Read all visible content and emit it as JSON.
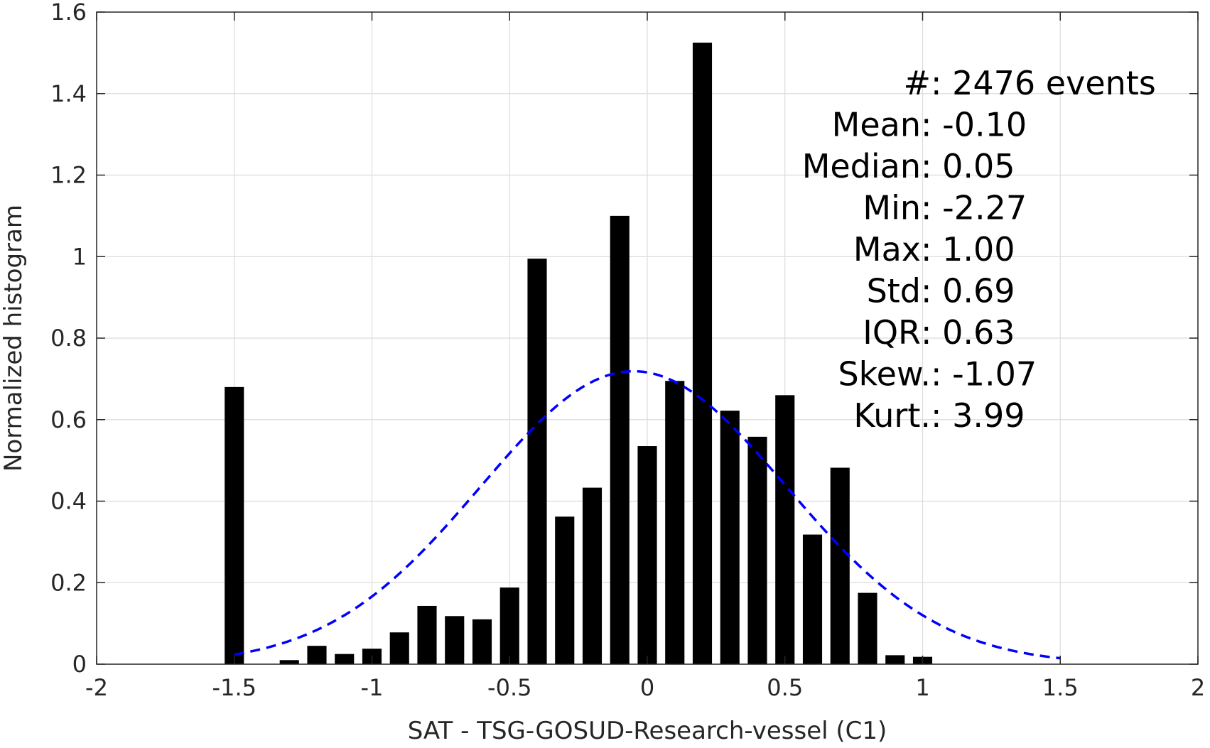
{
  "chart_data": {
    "type": "bar",
    "xlabel": "SAT - TSG-GOSUD-Research-vessel (C1)",
    "ylabel": "Normalized histogram",
    "xlim": [
      -2,
      2
    ],
    "ylim": [
      0,
      1.6
    ],
    "grid": true,
    "x_ticks": [
      "-2",
      "-1.5",
      "-1",
      "-0.5",
      "0",
      "0.5",
      "1",
      "1.5",
      "2"
    ],
    "y_ticks": [
      "0",
      "0.2",
      "0.4",
      "0.6",
      "0.8",
      "1",
      "1.2",
      "1.4",
      "1.6"
    ],
    "bar_width": 0.07,
    "bars": [
      {
        "x": -1.5,
        "y": 0.68
      },
      {
        "x": -1.3,
        "y": 0.01
      },
      {
        "x": -1.2,
        "y": 0.045
      },
      {
        "x": -1.1,
        "y": 0.025
      },
      {
        "x": -1.0,
        "y": 0.038
      },
      {
        "x": -0.9,
        "y": 0.078
      },
      {
        "x": -0.8,
        "y": 0.143
      },
      {
        "x": -0.7,
        "y": 0.118
      },
      {
        "x": -0.6,
        "y": 0.11
      },
      {
        "x": -0.5,
        "y": 0.188
      },
      {
        "x": -0.4,
        "y": 0.995
      },
      {
        "x": -0.3,
        "y": 0.362
      },
      {
        "x": -0.2,
        "y": 0.433
      },
      {
        "x": -0.1,
        "y": 1.1
      },
      {
        "x": 0.0,
        "y": 0.535
      },
      {
        "x": 0.1,
        "y": 0.695
      },
      {
        "x": 0.2,
        "y": 1.525
      },
      {
        "x": 0.3,
        "y": 0.622
      },
      {
        "x": 0.4,
        "y": 0.558
      },
      {
        "x": 0.5,
        "y": 0.66
      },
      {
        "x": 0.6,
        "y": 0.318
      },
      {
        "x": 0.7,
        "y": 0.482
      },
      {
        "x": 0.8,
        "y": 0.175
      },
      {
        "x": 0.9,
        "y": 0.022
      },
      {
        "x": 1.0,
        "y": 0.018
      }
    ],
    "fit": {
      "type": "normal",
      "mean": -0.05,
      "std": 0.555,
      "x_range": [
        -1.5,
        1.5
      ],
      "color": "#0000ff",
      "style": "dashed"
    },
    "bar_color": "#000000",
    "stats": [
      {
        "label": "#  ",
        "value": ": 2476 events"
      },
      {
        "label": "Mean ",
        "value": ": -0.10"
      },
      {
        "label": "Median ",
        "value": ": 0.05"
      },
      {
        "label": "Min ",
        "value": ": -2.27"
      },
      {
        "label": "Max ",
        "value": ": 1.00"
      },
      {
        "label": "Std ",
        "value": ": 0.69"
      },
      {
        "label": "IQR ",
        "value": ": 0.63"
      },
      {
        "label": "Skew. ",
        "value": ": -1.07"
      },
      {
        "label": "Kurt. ",
        "value": ": 3.99"
      }
    ]
  }
}
